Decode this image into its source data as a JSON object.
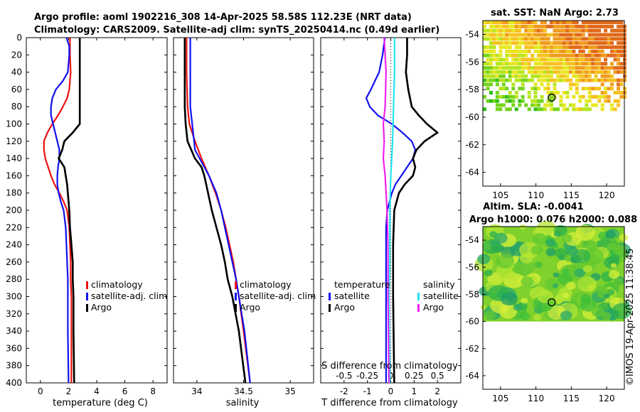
{
  "titles": {
    "line1": "Argo profile: aoml 1902216_308 14-Apr-2025 58.58S 112.23E (NRT data)",
    "line2": "Climatology: CARS2009. Satellite-adj clim: synTS_20250414.nc (0.49d earlier)",
    "sst": "sat. SST: NaN Argo: 2.73",
    "sla1": "Altim. SLA: -0.0041",
    "sla2": "Argo h1000: 0.076 h2000: 0.088"
  },
  "credit": "©IMOS 19-Apr-2025 11:38:45",
  "colors": {
    "climatology": "#ee1111",
    "satellite": "#1111ee",
    "argo": "#000000",
    "salinity_sat": "#22e5ee",
    "salinity_argo": "#ee22ee"
  },
  "chart_data": [
    {
      "type": "line",
      "id": "temperature",
      "xlabel": "temperature (deg C)",
      "ylabel": "depth",
      "xlim": [
        -1,
        9
      ],
      "ylim": [
        0,
        400
      ],
      "y_inverted": true,
      "xticks": [
        "0",
        "2",
        "4",
        "6",
        "8"
      ],
      "yticks": [
        "0",
        "20",
        "40",
        "60",
        "80",
        "100",
        "120",
        "140",
        "160",
        "180",
        "200",
        "220",
        "240",
        "260",
        "280",
        "300",
        "320",
        "340",
        "360",
        "380",
        "400"
      ],
      "legend": [
        "climatology",
        "satellite-adj. clim",
        "Argo"
      ],
      "series": [
        {
          "name": "climatology",
          "color": "#ee1111",
          "depth": [
            0,
            20,
            40,
            60,
            70,
            80,
            90,
            100,
            110,
            120,
            130,
            140,
            150,
            160,
            170,
            180,
            190,
            200,
            220,
            240,
            260,
            280,
            300,
            340,
            400
          ],
          "values": [
            2.1,
            2.1,
            2.15,
            2.05,
            1.9,
            1.6,
            1.25,
            0.85,
            0.5,
            0.25,
            0.25,
            0.35,
            0.55,
            0.75,
            1.0,
            1.35,
            1.65,
            1.9,
            2.05,
            2.1,
            2.15,
            2.15,
            2.2,
            2.2,
            2.2
          ]
        },
        {
          "name": "satellite-adj. clim",
          "color": "#1111ee",
          "depth": [
            0,
            10,
            20,
            40,
            50,
            60,
            70,
            80,
            90,
            100,
            110,
            120,
            130,
            140,
            150,
            160,
            170,
            180,
            190,
            200,
            220,
            240,
            260,
            280,
            300,
            340,
            400
          ],
          "values": [
            1.85,
            2.05,
            2.05,
            1.95,
            1.6,
            1.1,
            0.85,
            0.75,
            0.75,
            0.9,
            1.05,
            1.2,
            1.35,
            1.35,
            1.25,
            1.2,
            1.2,
            1.3,
            1.45,
            1.65,
            1.8,
            1.85,
            1.9,
            1.95,
            1.95,
            1.95,
            2.0
          ]
        },
        {
          "name": "Argo",
          "color": "#000000",
          "depth": [
            0,
            20,
            40,
            60,
            80,
            100,
            110,
            120,
            130,
            140,
            150,
            160,
            170,
            180,
            200,
            220,
            240,
            260,
            280,
            300,
            340,
            400
          ],
          "values": [
            2.8,
            2.8,
            2.8,
            2.8,
            2.8,
            2.8,
            2.3,
            1.7,
            1.55,
            1.3,
            1.7,
            1.8,
            1.9,
            1.95,
            2.05,
            2.1,
            2.2,
            2.3,
            2.3,
            2.35,
            2.35,
            2.4
          ]
        }
      ]
    },
    {
      "type": "line",
      "id": "salinity",
      "xlabel": "salinity",
      "xlim": [
        33.75,
        35.25
      ],
      "ylim": [
        0,
        400
      ],
      "y_inverted": true,
      "xticks": [
        "34",
        "34.5",
        "35"
      ],
      "legend": [
        "climatology",
        "satellite-adj. clim",
        "Argo"
      ],
      "series": [
        {
          "name": "climatology",
          "color": "#ee1111",
          "depth": [
            0,
            40,
            80,
            100,
            120,
            140,
            160,
            180,
            200,
            220,
            240,
            260,
            280,
            300,
            340,
            400
          ],
          "values": [
            33.89,
            33.89,
            33.9,
            33.92,
            33.98,
            34.05,
            34.13,
            34.2,
            34.26,
            34.31,
            34.35,
            34.39,
            34.42,
            34.45,
            34.5,
            34.57
          ]
        },
        {
          "name": "satellite-adj. clim",
          "color": "#1111ee",
          "depth": [
            0,
            40,
            80,
            100,
            120,
            130,
            140,
            160,
            180,
            200,
            220,
            240,
            260,
            280,
            300,
            340,
            400
          ],
          "values": [
            33.93,
            33.93,
            33.93,
            33.95,
            33.97,
            33.98,
            34.03,
            34.13,
            34.21,
            34.26,
            34.3,
            34.34,
            34.38,
            34.42,
            34.45,
            34.51,
            34.57
          ]
        },
        {
          "name": "Argo",
          "color": "#000000",
          "depth": [
            0,
            40,
            80,
            100,
            120,
            140,
            150,
            160,
            180,
            200,
            220,
            240,
            260,
            280,
            300,
            340,
            400
          ],
          "values": [
            33.87,
            33.87,
            33.87,
            33.88,
            33.9,
            33.98,
            34.05,
            34.08,
            34.12,
            34.16,
            34.21,
            34.26,
            34.3,
            34.33,
            34.38,
            34.45,
            34.52
          ]
        }
      ]
    },
    {
      "type": "line",
      "id": "differences",
      "xlabel": "T difference from climatology",
      "xlabel_top": "S difference from climatology",
      "xlim": [
        -3,
        3
      ],
      "ylim": [
        0,
        400
      ],
      "y_inverted": true,
      "xticks": [
        "-2",
        "-1",
        "0",
        "1",
        "2"
      ],
      "xticks_top": [
        "-0.5",
        "-0.25",
        "0",
        "0.25",
        "0.5"
      ],
      "xlim_top": [
        -0.75,
        0.75
      ],
      "legend_left_title": "temperature",
      "legend_left": [
        "satellite",
        "Argo"
      ],
      "legend_right_title": "salinity",
      "legend_right": [
        "satellite",
        "Argo"
      ],
      "series": [
        {
          "name": "temperature satellite",
          "color": "#1111ee",
          "axis": "T",
          "depth": [
            0,
            20,
            40,
            60,
            70,
            80,
            90,
            100,
            110,
            120,
            130,
            140,
            150,
            160,
            170,
            180,
            200,
            220,
            260,
            300,
            400
          ],
          "values": [
            -0.25,
            -0.35,
            -0.5,
            -0.85,
            -1.05,
            -0.9,
            -0.55,
            0.05,
            0.5,
            0.9,
            1.05,
            0.95,
            0.7,
            0.45,
            0.2,
            0.05,
            -0.15,
            -0.2,
            -0.2,
            -0.2,
            -0.2
          ]
        },
        {
          "name": "temperature Argo",
          "color": "#000000",
          "axis": "T",
          "depth": [
            0,
            20,
            40,
            60,
            80,
            90,
            100,
            110,
            120,
            130,
            140,
            150,
            160,
            170,
            180,
            200,
            240,
            300,
            400
          ],
          "values": [
            0.7,
            0.7,
            0.65,
            0.75,
            0.9,
            1.2,
            1.55,
            2.0,
            1.45,
            1.1,
            0.95,
            1.05,
            0.95,
            0.6,
            0.35,
            0.15,
            0.1,
            0.1,
            0.15
          ]
        },
        {
          "name": "salinity satellite",
          "color": "#22e5ee",
          "axis": "S",
          "depth": [
            0,
            40,
            80,
            120,
            160,
            200,
            260,
            300,
            400
          ],
          "values": [
            0.04,
            0.04,
            0.03,
            0.02,
            0.0,
            -0.01,
            -0.01,
            -0.02,
            -0.01
          ]
        },
        {
          "name": "salinity Argo",
          "color": "#ee22ee",
          "axis": "S",
          "depth": [
            0,
            40,
            80,
            100,
            120,
            140,
            160,
            180,
            200,
            240,
            300,
            400
          ],
          "values": [
            -0.07,
            -0.05,
            -0.06,
            -0.08,
            -0.07,
            -0.08,
            -0.06,
            -0.05,
            -0.04,
            -0.03,
            -0.03,
            -0.02
          ]
        }
      ]
    },
    {
      "type": "heatmap",
      "id": "sst_map",
      "title": "sat. SST: NaN Argo: 2.73",
      "xlim": [
        102.5,
        122.5
      ],
      "ylim": [
        -65,
        -53
      ],
      "xticks": [
        "105",
        "110",
        "115",
        "120"
      ],
      "yticks": [
        "-54",
        "-56",
        "-58",
        "-60",
        "-62",
        "-64"
      ],
      "argo_position": [
        112.23,
        -58.58
      ]
    },
    {
      "type": "heatmap",
      "id": "sla_map",
      "title": "Altim. SLA: -0.0041",
      "xlim": [
        102.5,
        122.5
      ],
      "ylim": [
        -65,
        -53
      ],
      "xticks": [
        "105",
        "110",
        "115",
        "120"
      ],
      "yticks": [
        "-54",
        "-56",
        "-58",
        "-60",
        "-62",
        "-64"
      ],
      "argo_position": [
        112.23,
        -58.58
      ]
    }
  ]
}
